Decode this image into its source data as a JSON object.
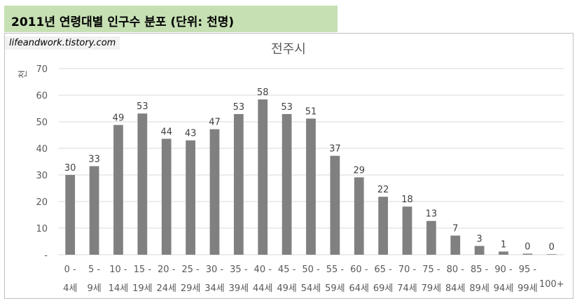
{
  "header": {
    "title": "2011년 연령대별 인구수 분포 (단위: 천명)"
  },
  "watermark": {
    "text": "lifeandwork.tistory.com"
  },
  "colors": {
    "header_bg": "#c6e0b4",
    "bar": "#808080",
    "grid": "#d9d9d9",
    "text": "#595959"
  },
  "chart_data": {
    "type": "bar",
    "title": "전주시",
    "ylabel": "천",
    "xlabel": "",
    "ylim": [
      0,
      70
    ],
    "yticks": [
      "-",
      "10",
      "20",
      "30",
      "40",
      "50",
      "60",
      "70"
    ],
    "grid": true,
    "categories": [
      [
        "0 -",
        "4세"
      ],
      [
        "5 -",
        "9세"
      ],
      [
        "10 -",
        "14세"
      ],
      [
        "15 -",
        "19세"
      ],
      [
        "20 -",
        "24세"
      ],
      [
        "25 -",
        "29세"
      ],
      [
        "30 -",
        "34세"
      ],
      [
        "35 -",
        "39세"
      ],
      [
        "40 -",
        "44세"
      ],
      [
        "45 -",
        "49세"
      ],
      [
        "50 -",
        "54세"
      ],
      [
        "55 -",
        "59세"
      ],
      [
        "60 -",
        "64세"
      ],
      [
        "65 -",
        "69세"
      ],
      [
        "70 -",
        "74세"
      ],
      [
        "75 -",
        "79세"
      ],
      [
        "80 -",
        "84세"
      ],
      [
        "85 -",
        "89세"
      ],
      [
        "90 -",
        "94세"
      ],
      [
        "95 -",
        "99세"
      ],
      [
        "",
        "100+"
      ]
    ],
    "values": [
      30,
      33.3,
      48.8,
      53.1,
      43.6,
      43,
      47.2,
      52.9,
      58.4,
      52.9,
      51.2,
      37.2,
      29.1,
      21.8,
      18.1,
      12.7,
      7.2,
      3.3,
      1.2,
      0.4,
      0.2
    ],
    "data_labels": [
      "30",
      "33",
      "49",
      "53",
      "44",
      "43",
      "47",
      "53",
      "58",
      "53",
      "51",
      "37",
      "29",
      "22",
      "18",
      "13",
      "7",
      "3",
      "1",
      "0",
      "0"
    ]
  }
}
